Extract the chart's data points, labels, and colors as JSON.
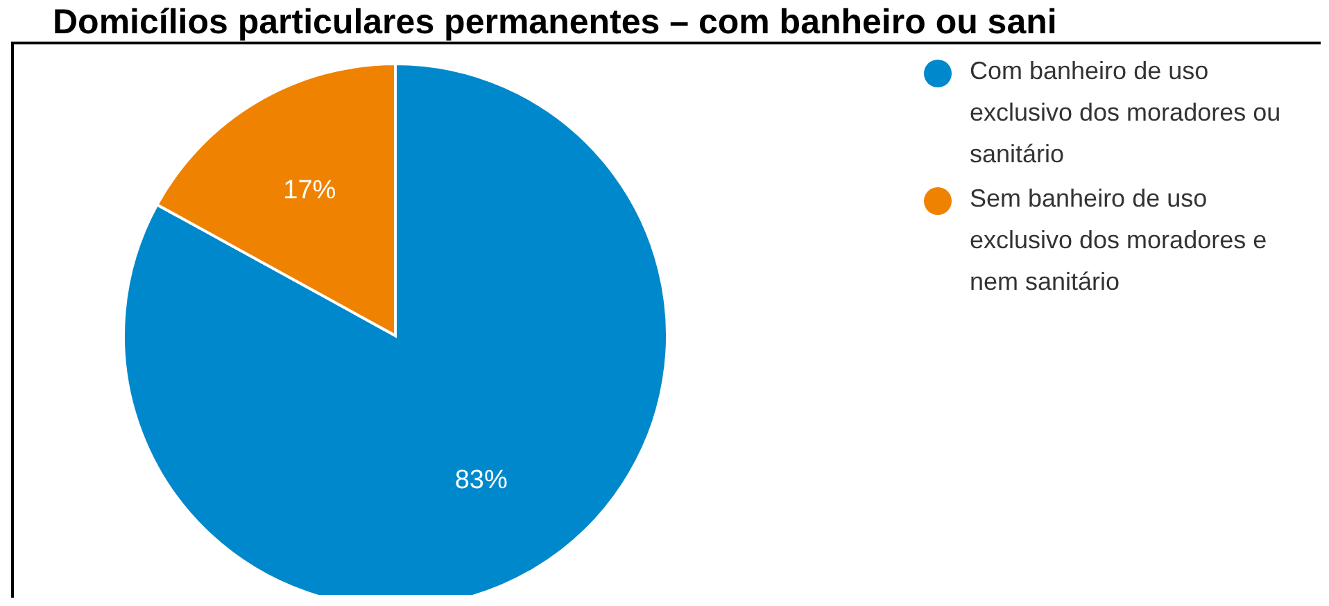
{
  "chart_data": {
    "type": "pie",
    "title": "Domicílios particulares permanentes – com banheiro ou sani",
    "categories": [
      "Com banheiro de uso exclusivo dos moradores ou sanitário",
      "Sem banheiro de uso exclusivo dos moradores e nem sanitário"
    ],
    "values": [
      83,
      17
    ],
    "colors": [
      "#0088cc",
      "#ef8200"
    ],
    "value_labels": [
      "83%",
      "17%"
    ],
    "legend": "top right"
  }
}
